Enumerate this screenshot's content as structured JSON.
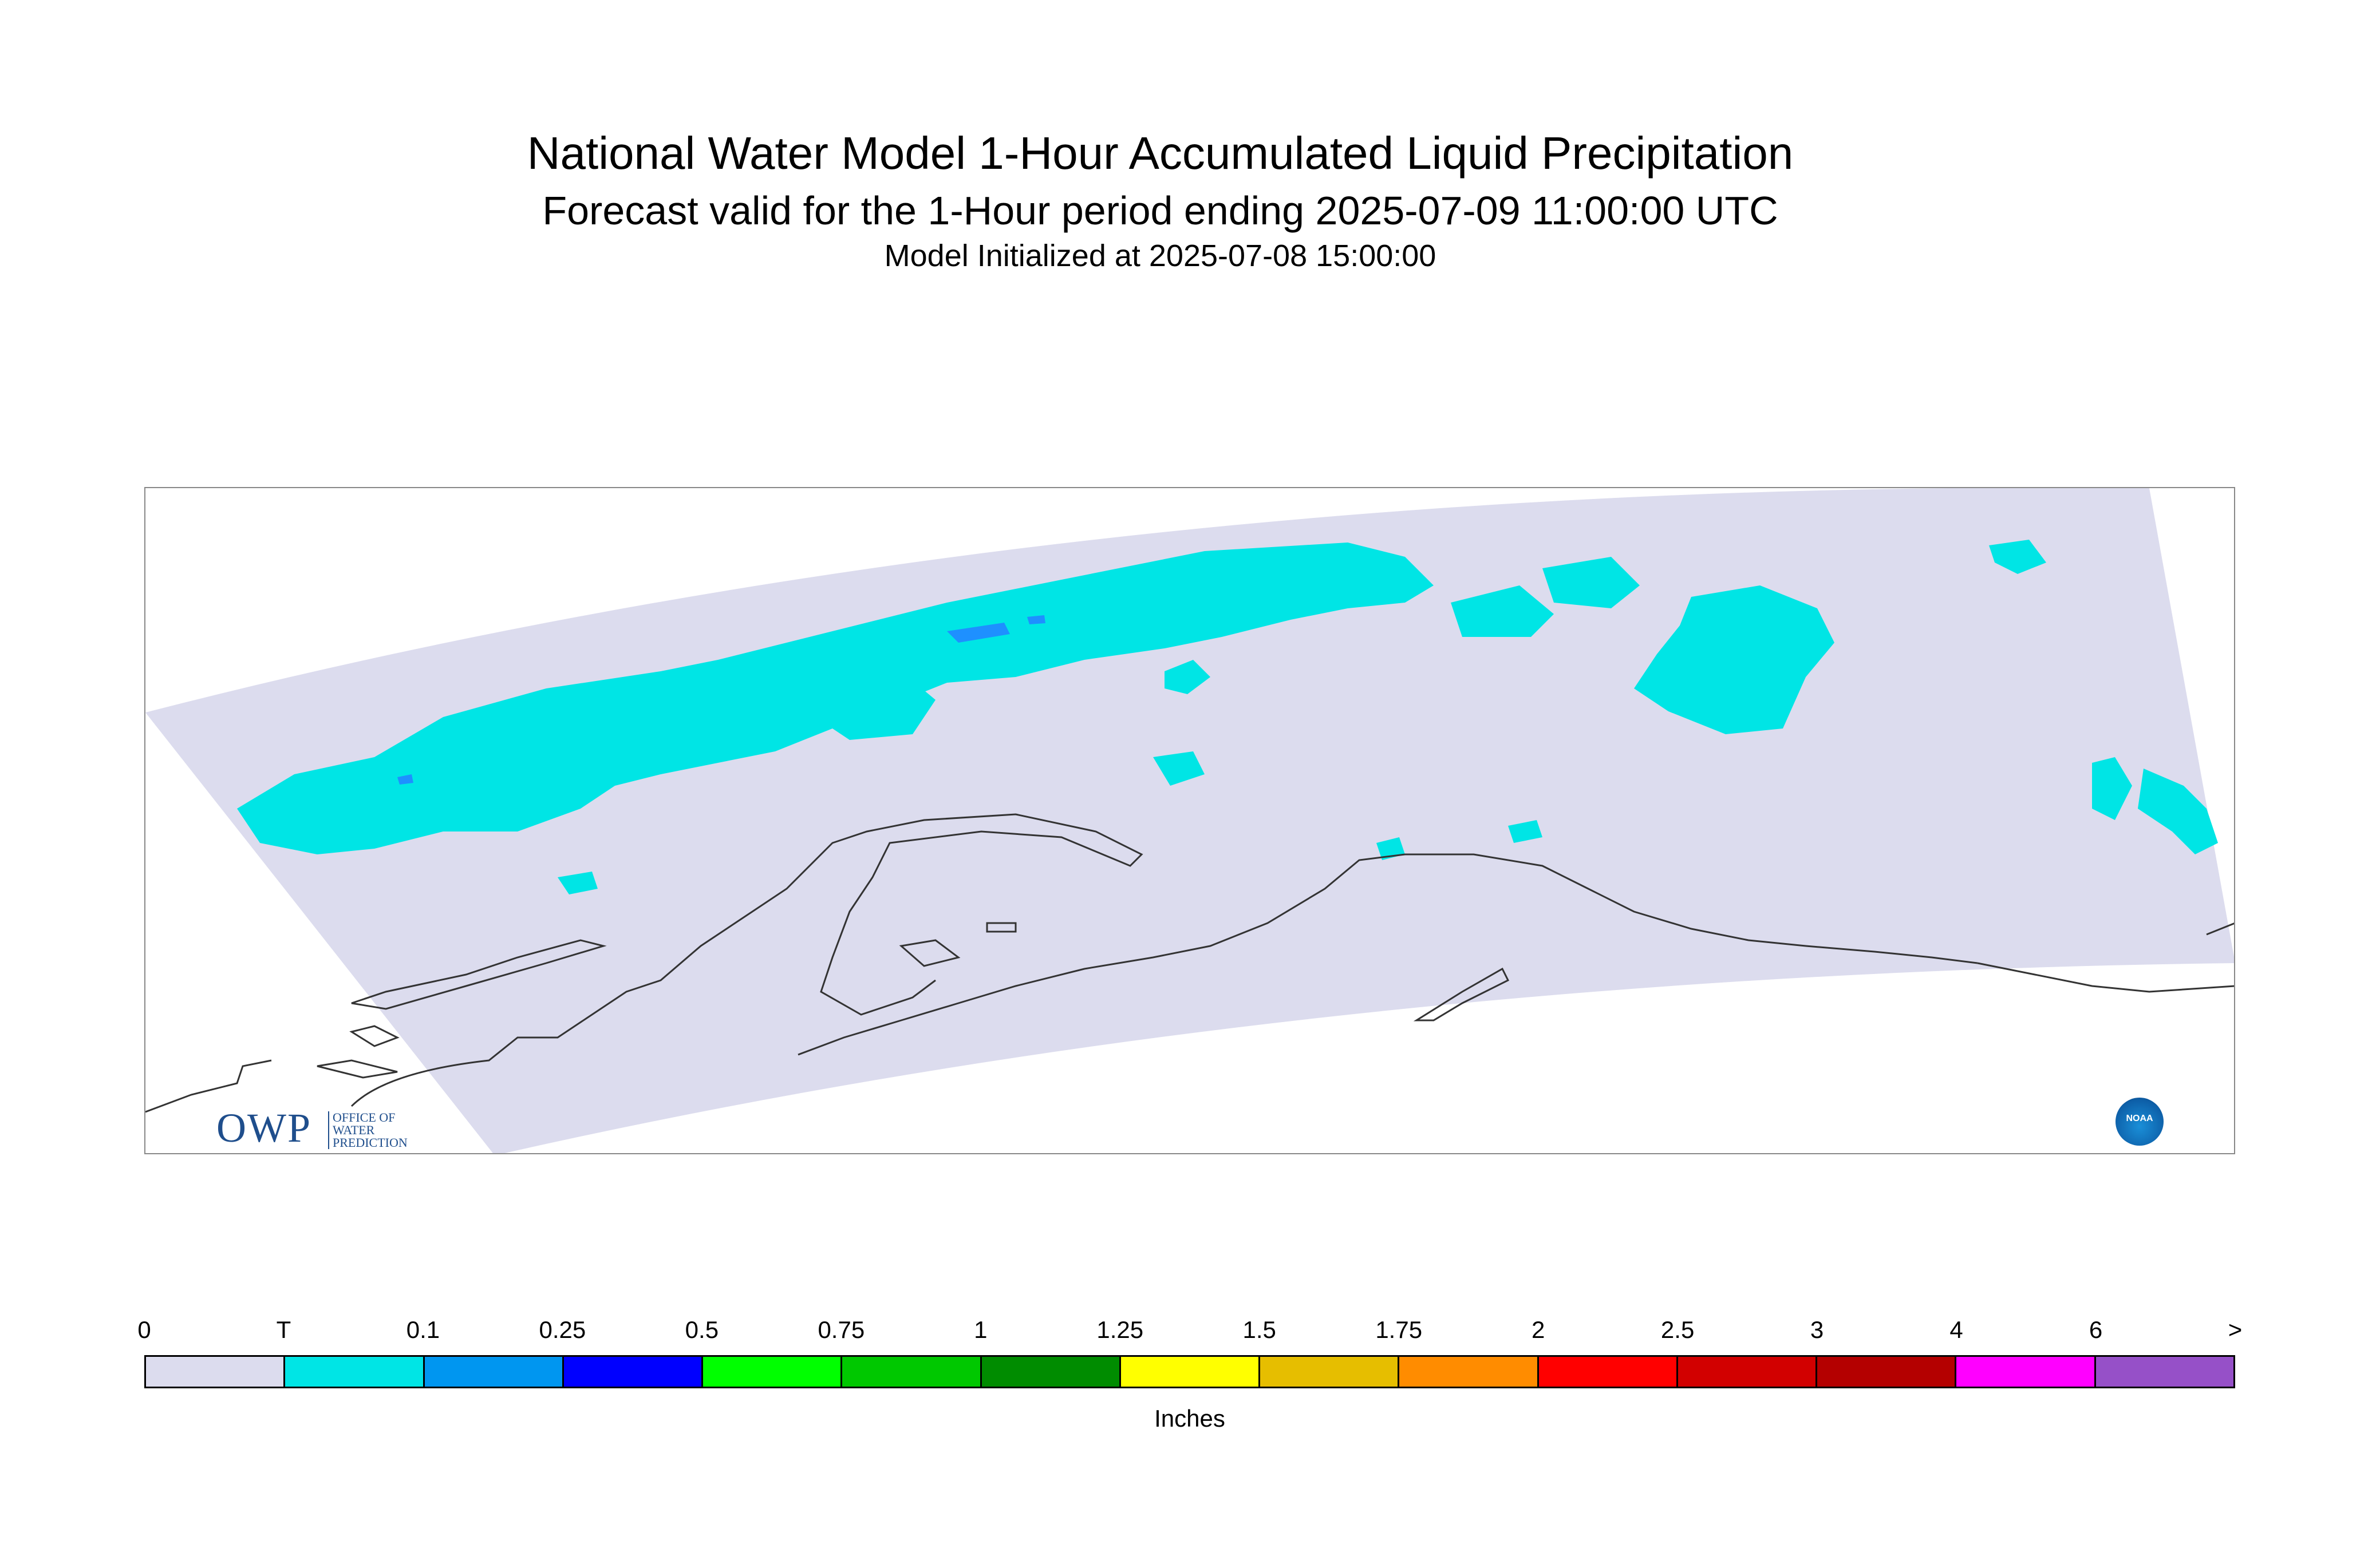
{
  "titles": {
    "main": "National Water Model 1-Hour Accumulated Liquid Precipitation",
    "forecast": "Forecast valid for the 1-Hour period ending 2025-07-09 11:00:00 UTC",
    "initialized": "Model Initialized at 2025-07-08 15:00:00"
  },
  "map": {
    "domain_color": "#dcdcee",
    "precip_color": "#00e5e5",
    "heavier_color": "#1e90ff",
    "coast_color": "#333333"
  },
  "logos": {
    "owp_big": "OWP",
    "owp_small": "OFFICE OF\nWATER\nPREDICTION",
    "noaa": "NOAA"
  },
  "legend": {
    "ticks": [
      "0",
      "T",
      "0.1",
      "0.25",
      "0.5",
      "0.75",
      "1",
      "1.25",
      "1.5",
      "1.75",
      "2",
      "2.5",
      "3",
      "4",
      "6",
      ">"
    ],
    "colors": [
      "#dcdcee",
      "#00e5e5",
      "#0096f0",
      "#0000ff",
      "#00ff00",
      "#00c800",
      "#008c00",
      "#ffff00",
      "#e6be00",
      "#ff8c00",
      "#ff0000",
      "#d20000",
      "#b40000",
      "#ff00ff",
      "#9650c8"
    ],
    "units": "Inches"
  }
}
